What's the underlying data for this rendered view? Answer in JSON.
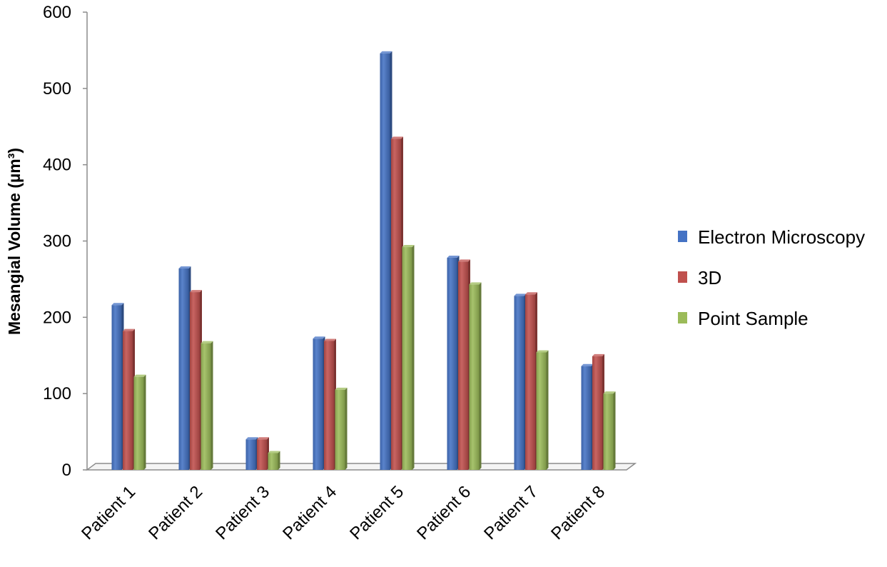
{
  "chart_data": {
    "type": "bar",
    "title": "",
    "xlabel": "",
    "ylabel": "Mesangial Volume (µm³)",
    "ylim": [
      0,
      600
    ],
    "yticks": [
      0,
      100,
      200,
      300,
      400,
      500,
      600
    ],
    "grid": false,
    "legend_position": "right",
    "categories": [
      "Patient 1",
      "Patient 2",
      "Patient 3",
      "Patient 4",
      "Patient 5",
      "Patient 6",
      "Patient 7",
      "Patient 8"
    ],
    "series": [
      {
        "name": "Electron Microscopy",
        "color": "#4472C4",
        "values": [
          216,
          264,
          40,
          172,
          546,
          278,
          228,
          136
        ]
      },
      {
        "name": "3D",
        "color": "#C0504D",
        "values": [
          182,
          233,
          40,
          169,
          434,
          273,
          230,
          149
        ]
      },
      {
        "name": "Point Sample",
        "color": "#9BBB59",
        "values": [
          122,
          166,
          22,
          105,
          292,
          243,
          154,
          100
        ]
      }
    ]
  }
}
